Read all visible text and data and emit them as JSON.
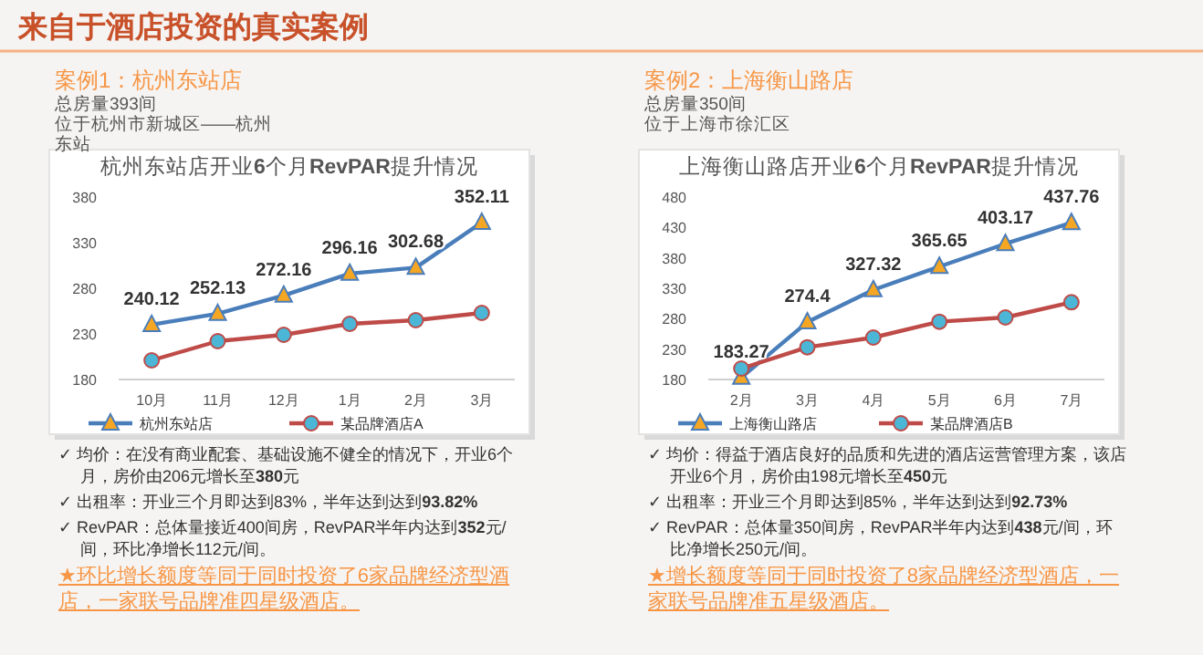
{
  "chart_data": [
    {
      "type": "line",
      "title": "杭州东站店开业**6**个月**RevPAR**提升情况",
      "categories": [
        "10月",
        "11月",
        "12月",
        "1月",
        "2月",
        "3月"
      ],
      "ylim": [
        180,
        380
      ],
      "yticks": [
        180,
        230,
        280,
        330,
        380
      ],
      "legend": "bottom",
      "series": [
        {
          "name": "杭州东站店",
          "color": "#4a7ebb",
          "marker": "triangle",
          "values": [
            240.12,
            252.13,
            272.16,
            296.16,
            302.68,
            352.11
          ],
          "value_labels": [
            "240.12",
            "252.13",
            "272.16",
            "296.16",
            "302.68",
            "352.11"
          ]
        },
        {
          "name": "某品牌酒店A",
          "color": "#be4b48",
          "marker": "circle",
          "values": [
            201,
            222,
            229,
            241,
            245,
            253
          ]
        }
      ],
      "annotations": [
        "来自于酒店投资的真实案例",
        "案例1：杭州东站店",
        "总房量393间",
        "位于杭州市新城区——杭州东站",
        "✓ 均价：在没有商业配套、基础设施不健全的情况下，开业6个月，房价由206元增长至**380**元",
        "✓ 出租率：开业三个月即达到83%，半年达到达到**93.82%**",
        "✓ RevPAR：总体量接近400间房，RevPAR半年内达到**352**元/间，环比净增长112元/间。",
        "★环比增长额度等同于同时投资了6家品牌经济型酒店，一家联号品牌准四星级酒店。"
      ]
    },
    {
      "type": "line",
      "title": "上海衡山路店开业**6**个月**RevPAR**提升情况",
      "categories": [
        "2月",
        "3月",
        "4月",
        "5月",
        "6月",
        "7月"
      ],
      "ylim": [
        180,
        480
      ],
      "yticks": [
        180,
        230,
        280,
        330,
        380,
        430,
        480
      ],
      "legend": "bottom",
      "series": [
        {
          "name": "上海衡山路店",
          "color": "#4a7ebb",
          "marker": "triangle",
          "values": [
            183.27,
            274.4,
            327.32,
            365.65,
            403.17,
            437.76
          ],
          "value_labels": [
            "183.27",
            "274.4",
            "327.32",
            "365.65",
            "403.17",
            "437.76"
          ]
        },
        {
          "name": "某品牌酒店B",
          "color": "#be4b48",
          "marker": "circle",
          "values": [
            198,
            233,
            249,
            275,
            282,
            307
          ]
        }
      ],
      "annotations": [
        "案例2：上海衡山路店",
        "总房量350间",
        "位于上海市徐汇区",
        "✓ 均价：得益于酒店良好的品质和先进的酒店运营管理方案，该店开业6个月，房价由198元增长至**450**元",
        "✓ 出租率：开业三个月即达到85%，半年达到达到**92.73%**",
        "✓ RevPAR：总体量350间房，RevPAR半年内达到**438**元/间，环比净增长250元/间。",
        "★增长额度等同于同时投资了8家品牌经济型酒店，一家联号品牌准五星级酒店。"
      ]
    }
  ]
}
